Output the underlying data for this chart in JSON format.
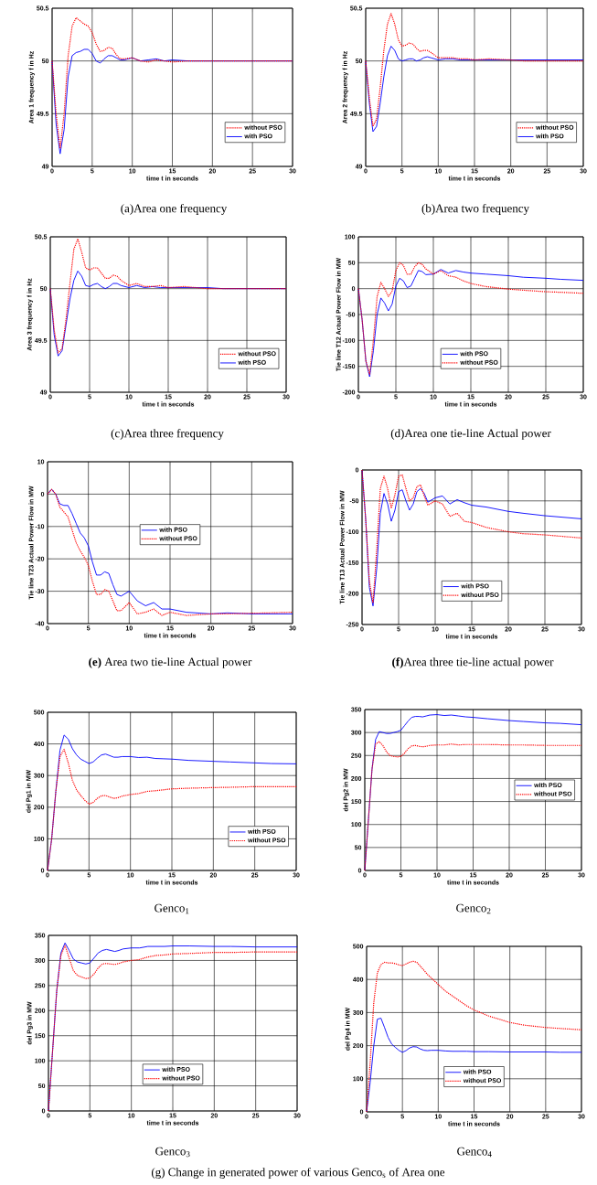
{
  "chart_data": [
    {
      "type": "line",
      "title": "(a)Area one frequency",
      "xlabel": "time t in seconds",
      "ylabel": "Area 1 frequency f in Hz",
      "xlim": [
        0,
        30
      ],
      "ylim": [
        49,
        50.5
      ],
      "xticks": [
        0,
        5,
        10,
        15,
        20,
        25,
        30
      ],
      "yticks": [
        49,
        49.5,
        50,
        50.5
      ],
      "grid": true,
      "legend": "bottom right",
      "x": [
        0,
        0.5,
        1,
        1.5,
        2,
        2.5,
        3,
        3.5,
        4,
        4.5,
        5,
        5.5,
        6,
        6.5,
        7,
        7.5,
        8,
        8.5,
        9,
        10,
        11,
        12,
        13,
        14,
        15,
        17,
        20,
        22,
        25,
        27,
        30
      ],
      "series": [
        {
          "name": "without PSO",
          "color": "#ff0000",
          "line_style": "dotted",
          "values": [
            50,
            49.5,
            49.17,
            49.5,
            50.05,
            50.33,
            50.41,
            50.38,
            50.35,
            50.33,
            50.27,
            50.16,
            50.09,
            50.1,
            50.13,
            50.12,
            50.06,
            50.02,
            50.02,
            50.03,
            50.0,
            49.99,
            50.01,
            50.0,
            49.99,
            50.0,
            50.0,
            50,
            50,
            50,
            50
          ]
        },
        {
          "name": "with PSO",
          "color": "#0000ff",
          "line_style": "solid",
          "values": [
            50,
            49.4,
            49.12,
            49.35,
            49.85,
            50.05,
            50.08,
            50.09,
            50.11,
            50.11,
            50.07,
            50.0,
            49.98,
            50.02,
            50.05,
            50.05,
            50.03,
            50.01,
            50.01,
            50.03,
            50.0,
            50.01,
            50.02,
            50.0,
            50.01,
            50,
            50,
            50,
            50,
            50,
            50
          ]
        }
      ]
    },
    {
      "type": "line",
      "title": "(b)Area two frequency",
      "xlabel": "time t in seconds",
      "ylabel": "Area 2 frequency f in Hz",
      "xlim": [
        0,
        30
      ],
      "ylim": [
        49,
        50.5
      ],
      "xticks": [
        0,
        5,
        10,
        15,
        20,
        25,
        30
      ],
      "yticks": [
        49,
        49.5,
        50,
        50.5
      ],
      "grid": true,
      "legend": "bottom right",
      "x": [
        0,
        0.5,
        1,
        1.5,
        2,
        2.5,
        3,
        3.5,
        4,
        4.5,
        5,
        5.5,
        6,
        6.5,
        7,
        7.5,
        8,
        8.5,
        9,
        10,
        11,
        12,
        13,
        14,
        15,
        17,
        20,
        22,
        25,
        27,
        30
      ],
      "series": [
        {
          "name": "without PSO",
          "color": "#ff0000",
          "line_style": "dotted",
          "values": [
            50,
            49.65,
            49.38,
            49.45,
            49.75,
            50.1,
            50.35,
            50.45,
            50.35,
            50.2,
            50.14,
            50.15,
            50.17,
            50.16,
            50.12,
            50.09,
            50.1,
            50.1,
            50.08,
            50.03,
            50.03,
            50.03,
            50.02,
            50.02,
            50.01,
            50.02,
            50.01,
            50,
            50,
            50,
            50
          ]
        },
        {
          "name": "with PSO",
          "color": "#0000ff",
          "line_style": "solid",
          "values": [
            50,
            49.6,
            49.33,
            49.38,
            49.6,
            49.85,
            50.05,
            50.14,
            50.1,
            50.02,
            50.0,
            50.01,
            50.02,
            50.02,
            50.0,
            50.01,
            50.03,
            50.04,
            50.03,
            50.01,
            50.02,
            50.02,
            50.01,
            50.01,
            50.01,
            50.01,
            50.01,
            50.01,
            50.01,
            50.01,
            50.01
          ]
        }
      ]
    },
    {
      "type": "line",
      "title": "(c)Area three frequency",
      "xlabel": "time t in seconds",
      "ylabel": "Area 3 frequency f in Hz",
      "xlim": [
        0,
        30
      ],
      "ylim": [
        49,
        50.5
      ],
      "xticks": [
        0,
        5,
        10,
        15,
        20,
        25,
        30
      ],
      "yticks": [
        49,
        49.5,
        50,
        50.5
      ],
      "grid": true,
      "legend": "bottom right",
      "x": [
        0,
        0.5,
        1,
        1.5,
        2,
        2.5,
        3,
        3.5,
        4,
        4.5,
        5,
        5.5,
        6,
        6.5,
        7,
        7.5,
        8,
        8.5,
        9,
        10,
        11,
        12,
        13,
        14,
        15,
        17,
        20,
        22,
        25,
        27,
        30
      ],
      "series": [
        {
          "name": "without PSO",
          "color": "#ff0000",
          "line_style": "dotted",
          "values": [
            50,
            49.6,
            49.38,
            49.42,
            49.7,
            50.05,
            50.38,
            50.48,
            50.35,
            50.2,
            50.18,
            50.2,
            50.2,
            50.15,
            50.1,
            50.1,
            50.13,
            50.12,
            50.08,
            50.03,
            50.05,
            50.02,
            50.02,
            50.03,
            50.01,
            50.02,
            50.0,
            50,
            50,
            50,
            50
          ]
        },
        {
          "name": "with PSO",
          "color": "#0000ff",
          "line_style": "solid",
          "values": [
            50,
            49.55,
            49.35,
            49.4,
            49.65,
            49.9,
            50.08,
            50.17,
            50.12,
            50.03,
            50.02,
            50.04,
            50.05,
            50.02,
            50.0,
            50.02,
            50.05,
            50.05,
            50.03,
            50.01,
            50.03,
            50.01,
            50.02,
            50.01,
            50.01,
            50.01,
            50.01,
            50,
            50,
            50,
            50
          ]
        }
      ]
    },
    {
      "type": "line",
      "title": "(d)Area one tie-line Actual power",
      "xlabel": "time t in seconds",
      "ylabel": "Tie line T12 Actual Power Flow in MW",
      "xlim": [
        0,
        30
      ],
      "ylim": [
        -200,
        100
      ],
      "xticks": [
        0,
        5,
        10,
        15,
        20,
        25,
        30
      ],
      "yticks": [
        -200,
        -150,
        -100,
        -50,
        0,
        50,
        100
      ],
      "grid": true,
      "legend": "bottom",
      "x": [
        0,
        0.5,
        1,
        1.5,
        2,
        2.5,
        3,
        3.5,
        4,
        4.5,
        5,
        5.5,
        6,
        6.5,
        7,
        7.5,
        8,
        8.5,
        9,
        10,
        11,
        12,
        13,
        14,
        15,
        17,
        20,
        22,
        25,
        27,
        30
      ],
      "series": [
        {
          "name": "with PSO",
          "color": "#0000ff",
          "line_style": "solid",
          "values": [
            0,
            -60,
            -140,
            -170,
            -120,
            -50,
            -18,
            -28,
            -43,
            -30,
            5,
            20,
            15,
            2,
            5,
            20,
            35,
            33,
            27,
            28,
            37,
            30,
            35,
            32,
            30,
            28,
            25,
            22,
            20,
            18,
            16
          ]
        },
        {
          "name": "without PSO",
          "color": "#ff0000",
          "line_style": "dotted",
          "values": [
            0,
            -60,
            -140,
            -165,
            -100,
            -15,
            12,
            0,
            -15,
            -5,
            35,
            50,
            45,
            28,
            28,
            42,
            50,
            47,
            38,
            28,
            35,
            25,
            22,
            15,
            10,
            4,
            -1,
            -3,
            -6,
            -7,
            -9
          ]
        }
      ]
    },
    {
      "type": "line",
      "title": "**(e)** Area two tie-line Actual power",
      "xlabel": "time t in seconds",
      "ylabel": "Tie line T23 Actual Power Flow in MW",
      "xlim": [
        0,
        30
      ],
      "ylim": [
        -40,
        10
      ],
      "xticks": [
        0,
        5,
        10,
        15,
        20,
        25,
        30
      ],
      "yticks": [
        -40,
        -30,
        -20,
        -10,
        0,
        10
      ],
      "grid": true,
      "legend": "center",
      "x": [
        0,
        0.5,
        1,
        1.5,
        2,
        2.5,
        3,
        3.5,
        4,
        4.5,
        5,
        5.5,
        6,
        6.5,
        7,
        7.5,
        8,
        8.5,
        9,
        10,
        11,
        12,
        13,
        14,
        15,
        17,
        20,
        22,
        25,
        27,
        30
      ],
      "series": [
        {
          "name": "with PSO",
          "color": "#0000ff",
          "line_style": "solid",
          "values": [
            0,
            1.5,
            0,
            -3,
            -3.5,
            -3.5,
            -6,
            -9,
            -12,
            -13.5,
            -16,
            -21,
            -25,
            -25,
            -24,
            -24.5,
            -28,
            -31,
            -31.5,
            -30,
            -33,
            -34.5,
            -33.5,
            -35.5,
            -35.5,
            -36.5,
            -37,
            -36.7,
            -37,
            -37,
            -37
          ]
        },
        {
          "name": "without PSO",
          "color": "#ff0000",
          "line_style": "dotted",
          "values": [
            0,
            1.5,
            0,
            -4,
            -5.5,
            -7,
            -11,
            -15,
            -17.5,
            -19.5,
            -22,
            -27,
            -31,
            -31,
            -29.5,
            -30,
            -33,
            -36,
            -36,
            -33.5,
            -37,
            -36.5,
            -35.5,
            -37.5,
            -36.5,
            -37.5,
            -37,
            -37,
            -36.8,
            -36.7,
            -36.5
          ]
        }
      ]
    },
    {
      "type": "line",
      "title": "**(f)**Area three tie-line actual power",
      "xlabel": "time t in seconds",
      "ylabel": "Tie line T13 Actual Power Flow in MW",
      "xlim": [
        0,
        30
      ],
      "ylim": [
        -250,
        0
      ],
      "xticks": [
        0,
        5,
        10,
        15,
        20,
        25,
        30
      ],
      "yticks": [
        -250,
        -200,
        -150,
        -100,
        -50,
        0
      ],
      "grid": true,
      "legend": "bottom",
      "x": [
        0,
        0.5,
        1,
        1.5,
        2,
        2.5,
        3,
        3.5,
        4,
        4.5,
        5,
        5.5,
        6,
        6.5,
        7,
        7.5,
        8,
        8.5,
        9,
        10,
        11,
        12,
        13,
        14,
        15,
        17,
        20,
        22,
        25,
        27,
        30
      ],
      "series": [
        {
          "name": "with PSO",
          "color": "#0000ff",
          "line_style": "solid",
          "values": [
            0,
            -80,
            -190,
            -220,
            -160,
            -70,
            -38,
            -55,
            -83,
            -65,
            -35,
            -32,
            -50,
            -65,
            -55,
            -35,
            -30,
            -38,
            -52,
            -45,
            -42,
            -55,
            -48,
            -53,
            -57,
            -60,
            -67,
            -70,
            -74,
            -76,
            -79
          ]
        },
        {
          "name": "without PSO",
          "color": "#ff0000",
          "line_style": "dotted",
          "values": [
            0,
            -80,
            -180,
            -215,
            -130,
            -30,
            -10,
            -30,
            -62,
            -40,
            -10,
            -8,
            -30,
            -50,
            -45,
            -27,
            -24,
            -42,
            -57,
            -50,
            -55,
            -75,
            -70,
            -83,
            -85,
            -93,
            -100,
            -103,
            -105,
            -107,
            -110
          ]
        }
      ]
    },
    {
      "type": "line",
      "title": "Genco$_{1}$",
      "xlabel": "time t in seconds",
      "ylabel": "del Pg1 in MW",
      "xlim": [
        0,
        30
      ],
      "ylim": [
        0,
        500
      ],
      "xticks": [
        0,
        5,
        10,
        15,
        20,
        25,
        30
      ],
      "yticks": [
        0,
        100,
        200,
        300,
        400,
        500
      ],
      "grid": true,
      "legend": "bottom right",
      "x": [
        0,
        0.5,
        1,
        1.5,
        2,
        2.5,
        3,
        3.5,
        4,
        4.5,
        5,
        5.5,
        6,
        6.5,
        7,
        7.5,
        8,
        8.5,
        9,
        10,
        11,
        12,
        13,
        14,
        15,
        17,
        20,
        22,
        25,
        27,
        30
      ],
      "series": [
        {
          "name": "with PSO",
          "color": "#0000ff",
          "line_style": "solid",
          "values": [
            0,
            100,
            250,
            380,
            428,
            415,
            385,
            365,
            352,
            345,
            338,
            343,
            355,
            365,
            368,
            363,
            358,
            358,
            360,
            360,
            357,
            358,
            354,
            353,
            352,
            348,
            345,
            343,
            340,
            338,
            337
          ]
        },
        {
          "name": "without PSO",
          "color": "#ff0000",
          "line_style": "dotted",
          "values": [
            0,
            100,
            250,
            360,
            383,
            340,
            285,
            255,
            237,
            222,
            210,
            215,
            228,
            236,
            237,
            232,
            228,
            230,
            235,
            240,
            243,
            250,
            252,
            255,
            258,
            260,
            262,
            263,
            265,
            265,
            265
          ]
        }
      ]
    },
    {
      "type": "line",
      "title": "Genco$_{2}$",
      "xlabel": "time t in seconds",
      "ylabel": "del Pg2 in MW",
      "xlim": [
        0,
        30
      ],
      "ylim": [
        0,
        350
      ],
      "xticks": [
        0,
        5,
        10,
        15,
        20,
        25,
        30
      ],
      "yticks": [
        0,
        50,
        100,
        150,
        200,
        250,
        300,
        350
      ],
      "grid": true,
      "legend": "center right",
      "x": [
        0,
        0.5,
        1,
        1.5,
        2,
        2.5,
        3,
        3.5,
        4,
        4.5,
        5,
        5.5,
        6,
        6.5,
        7,
        7.5,
        8,
        8.5,
        9,
        10,
        11,
        12,
        13,
        14,
        15,
        17,
        20,
        22,
        25,
        27,
        30
      ],
      "series": [
        {
          "name": "with PSO",
          "color": "#0000ff",
          "line_style": "solid",
          "values": [
            0,
            110,
            220,
            285,
            302,
            300,
            298,
            298,
            300,
            302,
            305,
            315,
            325,
            333,
            335,
            335,
            334,
            336,
            338,
            339,
            337,
            338,
            336,
            334,
            333,
            330,
            326,
            324,
            321,
            320,
            317
          ]
        },
        {
          "name": "without PSO",
          "color": "#ff0000",
          "line_style": "dotted",
          "values": [
            0,
            110,
            220,
            275,
            280,
            272,
            258,
            250,
            248,
            247,
            248,
            255,
            265,
            271,
            272,
            270,
            269,
            270,
            272,
            273,
            273,
            275,
            273,
            274,
            274,
            274,
            273,
            273,
            272,
            272,
            272
          ]
        }
      ]
    },
    {
      "type": "line",
      "title": "Genco$_{3}$",
      "xlabel": "time t in seconds",
      "ylabel": "del Pg3 in MW",
      "xlim": [
        0,
        30
      ],
      "ylim": [
        0,
        350
      ],
      "xticks": [
        0,
        5,
        10,
        15,
        20,
        25,
        30
      ],
      "yticks": [
        0,
        50,
        100,
        150,
        200,
        250,
        300,
        350
      ],
      "grid": true,
      "legend": "bottom",
      "x": [
        0,
        0.5,
        1,
        1.5,
        2,
        2.5,
        3,
        3.5,
        4,
        4.5,
        5,
        5.5,
        6,
        6.5,
        7,
        7.5,
        8,
        8.5,
        9,
        10,
        11,
        12,
        13,
        14,
        15,
        17,
        20,
        22,
        25,
        27,
        30
      ],
      "series": [
        {
          "name": "with PSO",
          "color": "#0000ff",
          "line_style": "solid",
          "values": [
            0,
            120,
            240,
            315,
            335,
            320,
            303,
            297,
            295,
            293,
            295,
            305,
            315,
            320,
            322,
            320,
            318,
            320,
            323,
            325,
            325,
            328,
            328,
            328,
            329,
            329,
            328,
            328,
            327,
            327,
            327
          ]
        },
        {
          "name": "without PSO",
          "color": "#ff0000",
          "line_style": "dotted",
          "values": [
            0,
            120,
            240,
            310,
            330,
            305,
            280,
            270,
            267,
            264,
            265,
            273,
            285,
            293,
            294,
            293,
            292,
            294,
            297,
            300,
            302,
            307,
            310,
            311,
            313,
            314,
            316,
            316,
            317,
            317,
            317
          ]
        }
      ]
    },
    {
      "type": "line",
      "title": "Genco$_{4}$",
      "xlabel": "time t in seconds",
      "ylabel": "del Pg4 in MW",
      "xlim": [
        0,
        30
      ],
      "ylim": [
        0,
        500
      ],
      "xticks": [
        0,
        5,
        10,
        15,
        20,
        25,
        30
      ],
      "yticks": [
        0,
        100,
        200,
        300,
        400,
        500
      ],
      "grid": true,
      "legend": "bottom",
      "annotations": [
        "(g) Change in generated power of various Genco$_{s}$ of Area one"
      ],
      "x": [
        0,
        0.5,
        1,
        1.5,
        2,
        2.5,
        3,
        3.5,
        4,
        4.5,
        5,
        5.5,
        6,
        6.5,
        7,
        7.5,
        8,
        8.5,
        9,
        10,
        11,
        12,
        13,
        14,
        15,
        17,
        20,
        22,
        25,
        27,
        30
      ],
      "series": [
        {
          "name": "with PSO",
          "color": "#0000ff",
          "line_style": "solid",
          "values": [
            0,
            90,
            200,
            280,
            283,
            255,
            225,
            205,
            195,
            186,
            180,
            185,
            193,
            197,
            196,
            190,
            186,
            185,
            186,
            186,
            184,
            183,
            183,
            183,
            182,
            182,
            181,
            181,
            181,
            180,
            180
          ]
        },
        {
          "name": "without PSO",
          "color": "#ff0000",
          "line_style": "dotted",
          "values": [
            0,
            150,
            330,
            420,
            445,
            452,
            450,
            450,
            448,
            444,
            442,
            447,
            452,
            455,
            452,
            440,
            428,
            415,
            405,
            385,
            365,
            350,
            335,
            320,
            308,
            290,
            270,
            262,
            255,
            252,
            248
          ]
        }
      ]
    }
  ]
}
